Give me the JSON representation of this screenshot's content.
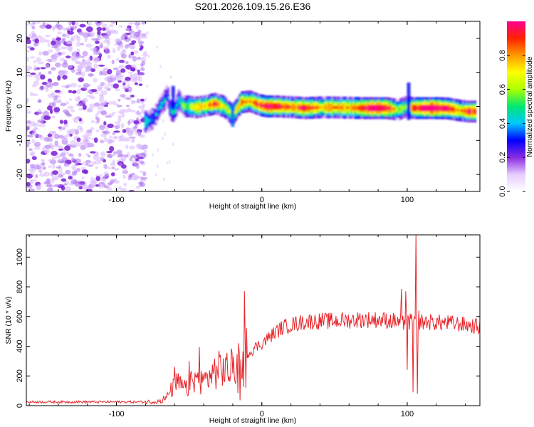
{
  "title": "S201.2026.109.15.26.E36",
  "chart_data": [
    {
      "type": "heatmap",
      "xlabel": "Height of straight line (km)",
      "ylabel": "Frequency (Hz)",
      "xlim": [
        -162,
        150
      ],
      "ylim": [
        -25,
        25
      ],
      "xticks": [
        -100,
        0,
        100
      ],
      "yticks": [
        -20,
        -10,
        0,
        10,
        20
      ],
      "colorbar": {
        "label": "Normalized spectral amplitude",
        "range": [
          0,
          1
        ],
        "ticks": [
          "0.0",
          "0.2",
          "0.4",
          "0.6",
          "0.8"
        ],
        "tick_values": [
          0,
          0.2,
          0.4,
          0.6,
          0.8
        ],
        "colors": [
          "#ffffff",
          "#e6ccff",
          "#8a2be2",
          "#0000ff",
          "#00c8ff",
          "#00e870",
          "#aaff00",
          "#ffff00",
          "#ff9900",
          "#ff2200",
          "#ff0090"
        ]
      },
      "noise_region_x": [
        -162,
        -80
      ],
      "ridge": [
        {
          "x": -80,
          "f": -4.5,
          "a": 0.45
        },
        {
          "x": -76,
          "f": -4,
          "a": 0.35
        },
        {
          "x": -72,
          "f": -2,
          "a": 0.3
        },
        {
          "x": -70,
          "f": 0,
          "a": 0.35
        },
        {
          "x": -67,
          "f": 1.5,
          "a": 0.4
        },
        {
          "x": -65,
          "f": 4,
          "a": 0.3
        },
        {
          "x": -63,
          "f": -1,
          "a": 0.35
        },
        {
          "x": -60,
          "f": -1.5,
          "a": 0.45
        },
        {
          "x": -57,
          "f": 2,
          "a": 0.35
        },
        {
          "x": -54,
          "f": 0,
          "a": 0.5
        },
        {
          "x": -50,
          "f": 0,
          "a": 0.55
        },
        {
          "x": -45,
          "f": -0.3,
          "a": 0.7
        },
        {
          "x": -38,
          "f": 0.2,
          "a": 0.65
        },
        {
          "x": -32,
          "f": 0.8,
          "a": 0.8
        },
        {
          "x": -26,
          "f": 0,
          "a": 0.6
        },
        {
          "x": -20,
          "f": -2.5,
          "a": 0.55
        },
        {
          "x": -14,
          "f": 1.2,
          "a": 0.75
        },
        {
          "x": -8,
          "f": 1.5,
          "a": 0.7
        },
        {
          "x": -2,
          "f": 0.5,
          "a": 0.8
        },
        {
          "x": 3,
          "f": 0,
          "a": 0.9
        },
        {
          "x": 10,
          "f": 0,
          "a": 0.85
        },
        {
          "x": 20,
          "f": -0.2,
          "a": 0.75
        },
        {
          "x": 30,
          "f": -0.5,
          "a": 0.85
        },
        {
          "x": 40,
          "f": -0.3,
          "a": 0.7
        },
        {
          "x": 50,
          "f": -0.3,
          "a": 0.75
        },
        {
          "x": 60,
          "f": -0.4,
          "a": 0.7
        },
        {
          "x": 70,
          "f": -0.5,
          "a": 0.85
        },
        {
          "x": 78,
          "f": -0.5,
          "a": 0.95
        },
        {
          "x": 86,
          "f": -0.5,
          "a": 0.85
        },
        {
          "x": 94,
          "f": -1,
          "a": 0.55
        },
        {
          "x": 100,
          "f": 0,
          "a": 0.5
        },
        {
          "x": 104,
          "f": -0.5,
          "a": 0.8
        },
        {
          "x": 112,
          "f": -0.5,
          "a": 0.95
        },
        {
          "x": 120,
          "f": -0.5,
          "a": 0.95
        },
        {
          "x": 128,
          "f": -0.6,
          "a": 0.9
        },
        {
          "x": 136,
          "f": -1.2,
          "a": 0.7
        },
        {
          "x": 142,
          "f": -1.5,
          "a": 0.85
        },
        {
          "x": 148,
          "f": -1.5,
          "a": 0.75
        }
      ]
    },
    {
      "type": "line",
      "xlabel": "Height of straight line (km)",
      "ylabel": "SNR (10 * v/v)",
      "xlim": [
        -162,
        150
      ],
      "ylim": [
        0,
        1150
      ],
      "xticks": [
        -100,
        0,
        100
      ],
      "yticks": [
        0,
        200,
        400,
        600,
        800,
        1000
      ],
      "series": [
        {
          "name": "SNR",
          "color": "#e8242a",
          "envelope": [
            [
              -162,
              25
            ],
            [
              -80,
              25
            ],
            [
              -70,
              30
            ],
            [
              -65,
              60
            ],
            [
              -62,
              110
            ],
            [
              -58,
              150
            ],
            [
              -52,
              110
            ],
            [
              -46,
              180
            ],
            [
              -40,
              160
            ],
            [
              -35,
              210
            ],
            [
              -28,
              250
            ],
            [
              -22,
              240
            ],
            [
              -18,
              280
            ],
            [
              -15,
              300
            ],
            [
              -12,
              350
            ],
            [
              -8,
              360
            ],
            [
              -5,
              390
            ],
            [
              0,
              420
            ],
            [
              5,
              460
            ],
            [
              10,
              500
            ],
            [
              15,
              530
            ],
            [
              20,
              545
            ],
            [
              25,
              555
            ],
            [
              30,
              565
            ],
            [
              40,
              570
            ],
            [
              50,
              570
            ],
            [
              60,
              575
            ],
            [
              70,
              580
            ],
            [
              80,
              580
            ],
            [
              90,
              570
            ],
            [
              98,
              565
            ],
            [
              102,
              560
            ],
            [
              110,
              565
            ],
            [
              120,
              560
            ],
            [
              130,
              555
            ],
            [
              140,
              545
            ],
            [
              150,
              530
            ]
          ],
          "spikes": [
            [
              -60,
              260
            ],
            [
              -50,
              300
            ],
            [
              -43,
              395
            ],
            [
              -38,
              220
            ],
            [
              -12,
              770
            ],
            [
              -11,
              120
            ],
            [
              98,
              580
            ],
            [
              102,
              620
            ],
            [
              104,
              90
            ],
            [
              105,
              600
            ],
            [
              106,
              1150
            ],
            [
              107,
              80
            ],
            [
              108,
              640
            ]
          ]
        }
      ]
    }
  ]
}
